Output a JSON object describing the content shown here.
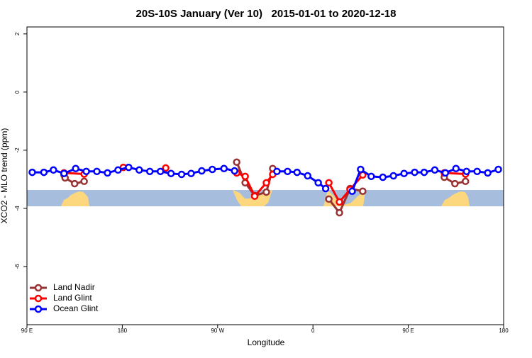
{
  "chart_data": {
    "type": "line",
    "title": "20S-10S January (Ver 10)   2015-01-01 to 2020-12-18",
    "xlabel": "Longitude",
    "ylabel": "XCO2 - MLO trend (ppm)",
    "xlim": [
      90,
      540
    ],
    "xticks": [
      {
        "value": 90,
        "label": "90 E"
      },
      180,
      {
        "value": 270,
        "label": "90 W"
      },
      {
        "value": 360,
        "label": "0"
      },
      {
        "value": 450,
        "label": "90 E"
      },
      {
        "value": 540,
        "label": "180"
      }
    ],
    "ylim": [
      -8,
      2.24
    ],
    "yticks": [
      2,
      0,
      -2,
      -4,
      -6
    ],
    "legend": "lower left",
    "series": [
      {
        "name": "Land Nadir",
        "color": "#993333",
        "x": [
          125,
          126,
          135,
          144,
          null,
          288,
          296,
          305,
          316,
          322,
          null,
          375,
          385,
          395,
          407,
          null,
          484,
          494,
          504
        ],
        "values": [
          -2.85,
          -2.95,
          -3.15,
          -3.07,
          null,
          -2.41,
          -3.12,
          -3.56,
          -3.44,
          -2.63,
          null,
          -3.68,
          -4.15,
          -3.32,
          -3.41,
          null,
          -2.93,
          -3.15,
          -3.07
        ]
      },
      {
        "name": "Land Glint",
        "color": "#ff0000",
        "x": [
          125,
          144,
          null,
          181,
          null,
          221,
          null,
          288,
          296,
          305,
          316,
          322,
          null,
          375,
          385,
          395,
          407,
          null,
          484,
          504
        ],
        "values": [
          -2.78,
          -2.82,
          null,
          -2.59,
          null,
          -2.61,
          null,
          -2.78,
          -2.9,
          -3.58,
          -3.12,
          -2.83,
          null,
          -3.12,
          -3.78,
          -3.35,
          -2.85,
          null,
          -2.78,
          -2.82
        ]
      },
      {
        "name": "Ocean Glint",
        "color": "#0000ff",
        "x": [
          95,
          106,
          115,
          125,
          136,
          146,
          156,
          166,
          176,
          186,
          196,
          206,
          216,
          226,
          236,
          245,
          255,
          265,
          276,
          286,
          null,
          326,
          336,
          345,
          355,
          365,
          372,
          null,
          397,
          405,
          415,
          426,
          436,
          446,
          456,
          465,
          475,
          485,
          495,
          505,
          515,
          525,
          535
        ],
        "values": [
          -2.76,
          -2.76,
          -2.68,
          -2.8,
          -2.63,
          -2.73,
          -2.73,
          -2.78,
          -2.68,
          -2.59,
          -2.68,
          -2.73,
          -2.73,
          -2.8,
          -2.83,
          -2.8,
          -2.71,
          -2.66,
          -2.63,
          -2.71,
          null,
          -2.73,
          -2.73,
          -2.76,
          -2.88,
          -3.12,
          -3.32,
          null,
          -3.41,
          -2.66,
          -2.9,
          -2.93,
          -2.88,
          -2.8,
          -2.76,
          -2.76,
          -2.68,
          -2.78,
          -2.63,
          -2.73,
          -2.73,
          -2.78,
          -2.66
        ]
      }
    ]
  }
}
